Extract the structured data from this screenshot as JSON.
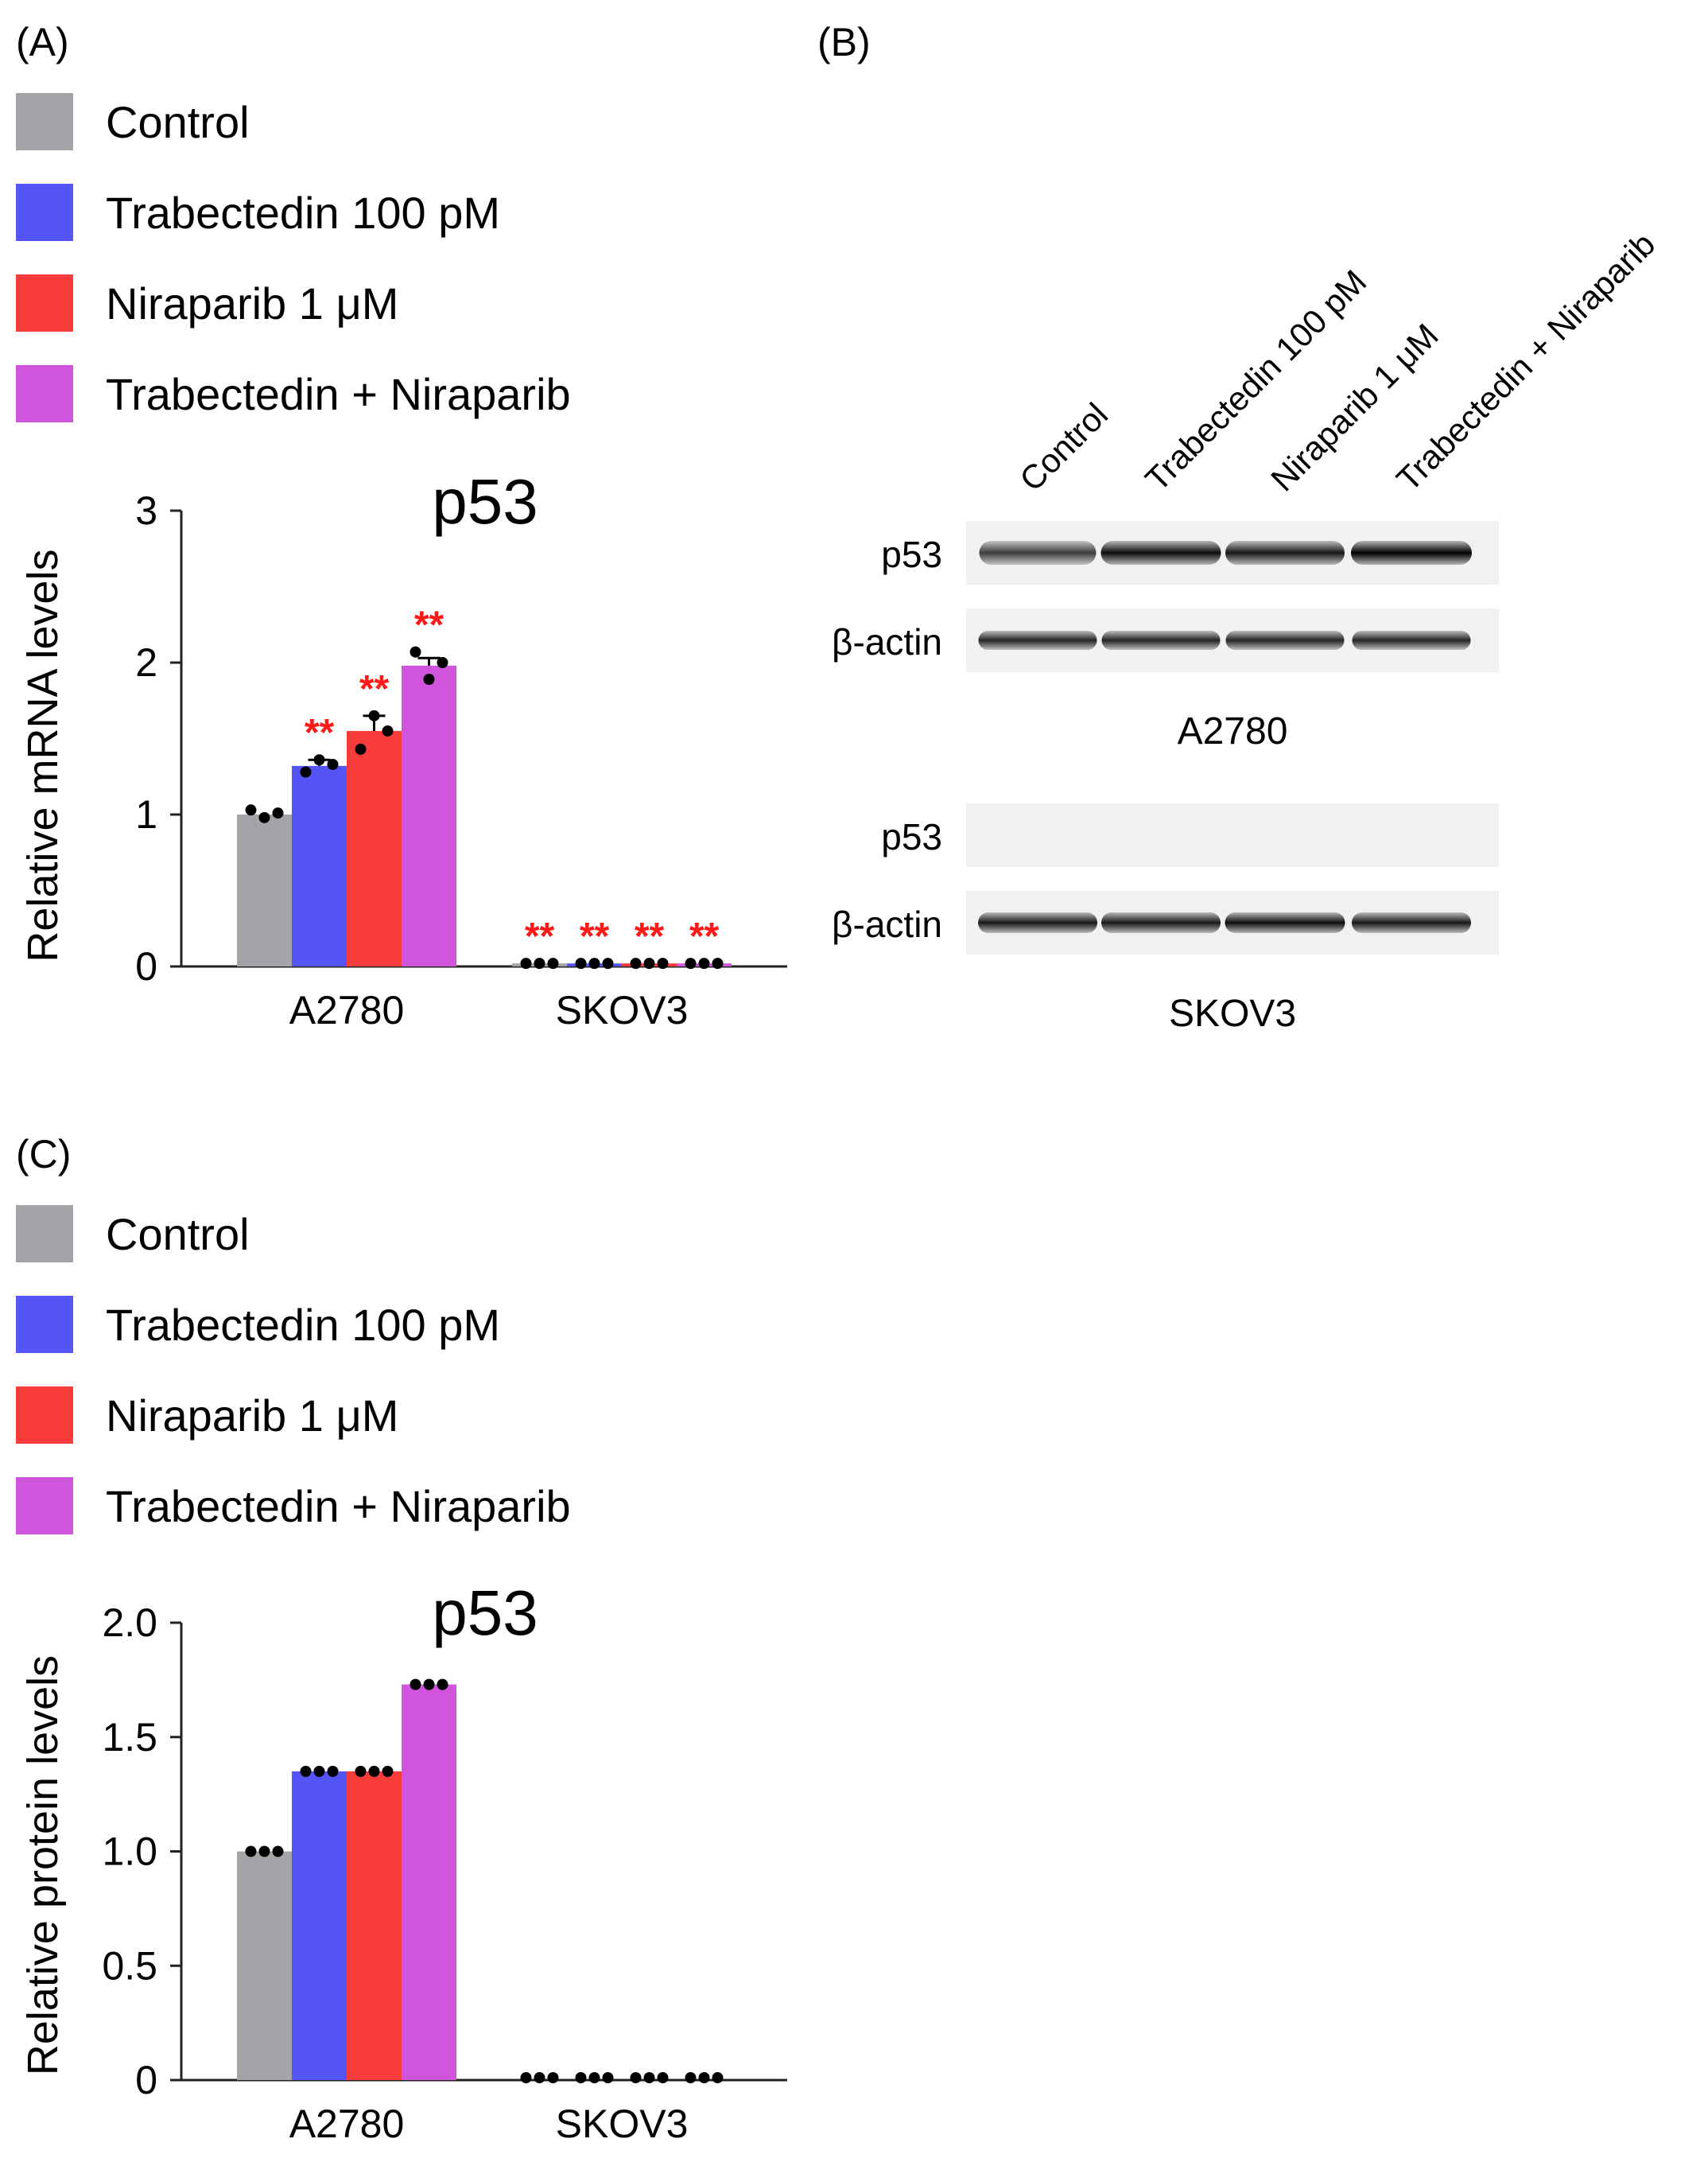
{
  "panels": {
    "a": {
      "label": "(A)"
    },
    "b": {
      "label": "(B)"
    },
    "c": {
      "label": "(C)"
    }
  },
  "colors": {
    "control": "#a4a3a8",
    "trabectedin": "#5555f7",
    "niraparib": "#f83c3c",
    "combo": "#d055dc",
    "significance": "#ff1a1a",
    "axis": "#222222"
  },
  "legend": [
    {
      "label": "Control",
      "color_key": "control"
    },
    {
      "label": "Trabectedin 100 pM",
      "color_key": "trabectedin"
    },
    {
      "label": "Niraparib 1 μM",
      "color_key": "niraparib"
    },
    {
      "label": "Trabectedin + Niraparib",
      "color_key": "combo"
    }
  ],
  "chart_data": [
    {
      "type": "bar",
      "panel": "A",
      "title": "p53",
      "xlabel": "",
      "ylabel": "Relative mRNA levels",
      "ylim": [
        0,
        3
      ],
      "yticks": [
        "0",
        "1",
        "2",
        "3"
      ],
      "categories": [
        "A2780",
        "SKOV3"
      ],
      "series": [
        {
          "name": "Control",
          "values": [
            1.0,
            0.02
          ],
          "errors": [
            0.0,
            0.0
          ],
          "points": [
            [
              1.03,
              0.98,
              1.01
            ],
            [
              0.02,
              0.02,
              0.02
            ]
          ],
          "significance": [
            "",
            "**"
          ]
        },
        {
          "name": "Trabectedin 100 pM",
          "values": [
            1.32,
            0.02
          ],
          "errors": [
            0.04,
            0.0
          ],
          "points": [
            [
              1.28,
              1.36,
              1.33
            ],
            [
              0.02,
              0.02,
              0.02
            ]
          ],
          "significance": [
            "**",
            "**"
          ]
        },
        {
          "name": "Niraparib 1 μM",
          "values": [
            1.55,
            0.02
          ],
          "errors": [
            0.1,
            0.0
          ],
          "points": [
            [
              1.43,
              1.65,
              1.55
            ],
            [
              0.02,
              0.02,
              0.02
            ]
          ],
          "significance": [
            "**",
            "**"
          ]
        },
        {
          "name": "Trabectedin + Niraparib",
          "values": [
            1.98,
            0.02
          ],
          "errors": [
            0.05,
            0.0
          ],
          "points": [
            [
              2.07,
              1.89,
              2.0
            ],
            [
              0.02,
              0.02,
              0.02
            ]
          ],
          "significance": [
            "**",
            "**"
          ]
        }
      ]
    },
    {
      "type": "bar",
      "panel": "C",
      "title": "p53",
      "xlabel": "",
      "ylabel": "Relative protein levels",
      "ylim": [
        0,
        2
      ],
      "yticks": [
        "0",
        "0.5",
        "1.0",
        "1.5",
        "2.0"
      ],
      "categories": [
        "A2780",
        "SKOV3"
      ],
      "series": [
        {
          "name": "Control",
          "values": [
            1.0,
            0.0
          ],
          "errors": [
            0,
            0
          ],
          "points": [
            [
              1.0,
              1.0,
              1.0
            ],
            [
              0.0,
              0.0,
              0.0
            ]
          ],
          "significance": [
            "",
            ""
          ]
        },
        {
          "name": "Trabectedin 100 pM",
          "values": [
            1.35,
            0.0
          ],
          "errors": [
            0,
            0
          ],
          "points": [
            [
              1.35,
              1.35,
              1.35
            ],
            [
              0.0,
              0.0,
              0.0
            ]
          ],
          "significance": [
            "",
            ""
          ]
        },
        {
          "name": "Niraparib 1 μM",
          "values": [
            1.35,
            0.0
          ],
          "errors": [
            0,
            0
          ],
          "points": [
            [
              1.35,
              1.35,
              1.35
            ],
            [
              0.0,
              0.0,
              0.0
            ]
          ],
          "significance": [
            "",
            ""
          ]
        },
        {
          "name": "Trabectedin + Niraparib",
          "values": [
            1.73,
            0.0
          ],
          "errors": [
            0,
            0
          ],
          "points": [
            [
              1.73,
              1.73,
              1.73
            ],
            [
              0.0,
              0.0,
              0.0
            ]
          ],
          "significance": [
            "",
            ""
          ]
        }
      ]
    }
  ],
  "western_blot": {
    "lane_labels": [
      "Control",
      "Trabectedin 100 pM",
      "Niraparib 1 μM",
      "Trabectedin + Niraparib"
    ],
    "groups": [
      {
        "cell_line": "A2780",
        "rows": [
          {
            "label": "p53",
            "intensities": [
              0.75,
              0.95,
              0.9,
              1.0
            ]
          },
          {
            "label": "β-actin",
            "intensities": [
              0.85,
              0.85,
              0.85,
              0.85
            ]
          }
        ]
      },
      {
        "cell_line": "SKOV3",
        "rows": [
          {
            "label": "p53",
            "intensities": [
              0,
              0,
              0,
              0
            ]
          },
          {
            "label": "β-actin",
            "intensities": [
              0.9,
              0.9,
              0.95,
              0.9
            ]
          }
        ]
      }
    ]
  }
}
